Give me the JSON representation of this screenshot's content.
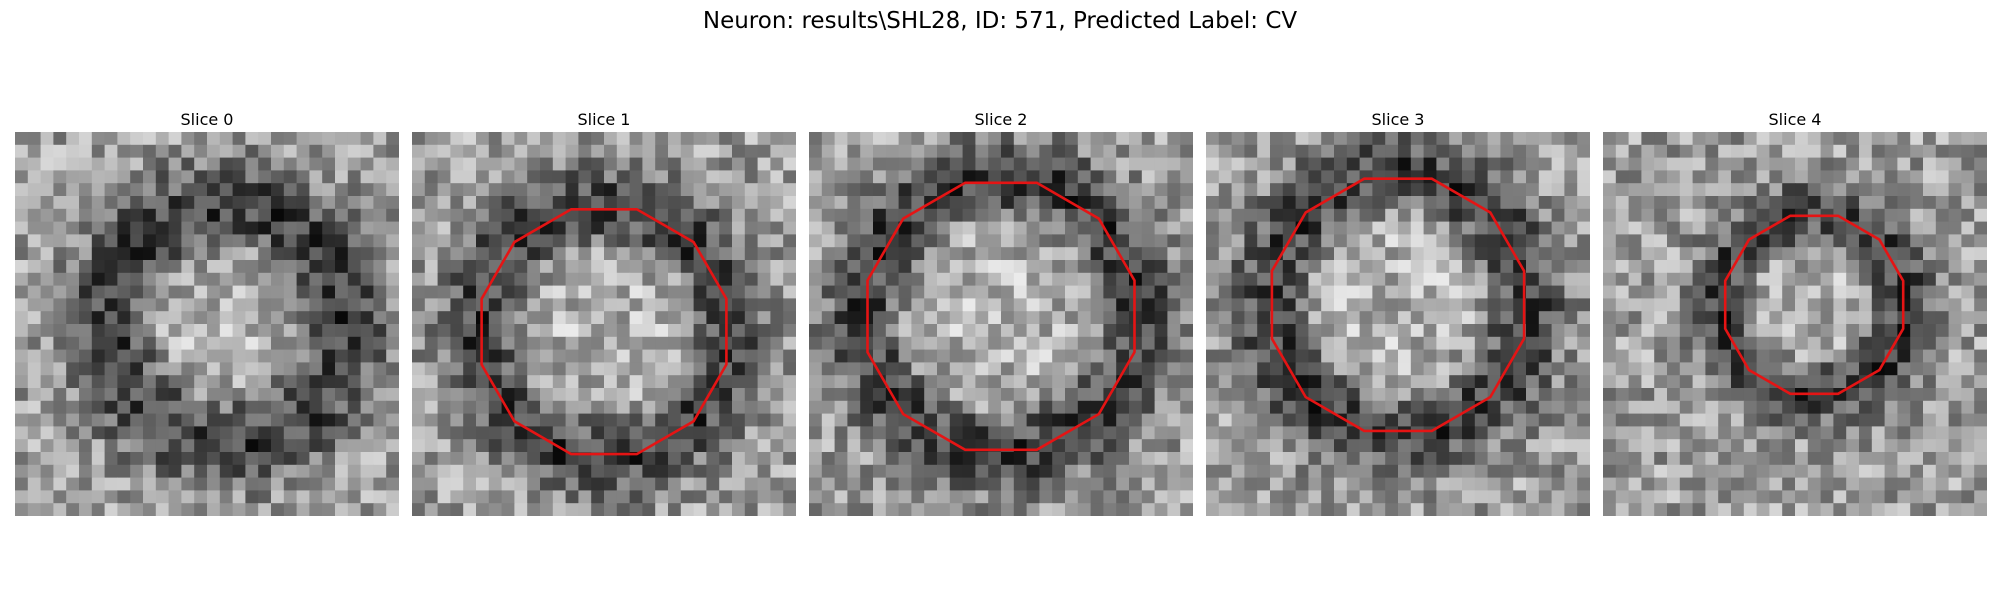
{
  "figure": {
    "title": "Neuron: results\\SHL28, ID: 571, Predicted Label: CV"
  },
  "panels": [
    {
      "title": "Slice 0",
      "seed": 11,
      "bright": [
        0.55,
        0.5
      ],
      "ring": [
        0.31,
        0.11
      ],
      "contour": false
    },
    {
      "title": "Slice 1",
      "seed": 23,
      "bright": [
        0.5,
        0.52
      ],
      "ring": [
        0.33,
        0.1
      ],
      "contour": true
    },
    {
      "title": "Slice 2",
      "seed": 37,
      "bright": [
        0.5,
        0.48
      ],
      "ring": [
        0.36,
        0.1
      ],
      "contour": true
    },
    {
      "title": "Slice 3",
      "seed": 41,
      "bright": [
        0.5,
        0.45
      ],
      "ring": [
        0.34,
        0.1
      ],
      "contour": true
    },
    {
      "title": "Slice 4",
      "seed": 53,
      "bright": [
        0.55,
        0.45
      ],
      "ring": [
        0.24,
        0.08
      ],
      "contour": true
    }
  ],
  "colors": {
    "contour": "#e51414"
  }
}
